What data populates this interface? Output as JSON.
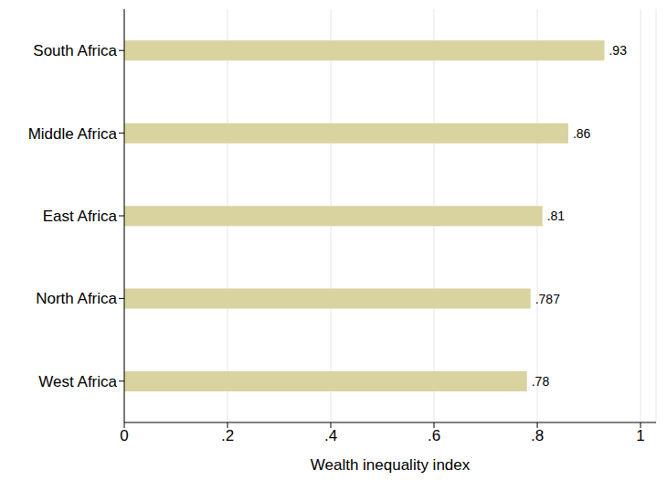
{
  "chart_data": {
    "type": "bar",
    "orientation": "horizontal",
    "xlabel": "Wealth inequality index",
    "categories": [
      "South Africa",
      "Middle Africa",
      "East Africa",
      "North Africa",
      "West Africa"
    ],
    "values": [
      0.93,
      0.86,
      0.81,
      0.787,
      0.78
    ],
    "value_labels": [
      ".93",
      ".86",
      ".81",
      ".787",
      ".78"
    ],
    "color": "#d9d3a0",
    "xlim": [
      0,
      1.03
    ],
    "xticks": [
      0,
      {
        "value": 0.2,
        "label": ".2"
      },
      {
        "value": 0.4,
        "label": ".4"
      },
      {
        "value": 0.6,
        "label": ".6"
      },
      {
        "value": 0.8,
        "label": ".8"
      },
      1
    ],
    "grid": true,
    "data_labels": true
  }
}
